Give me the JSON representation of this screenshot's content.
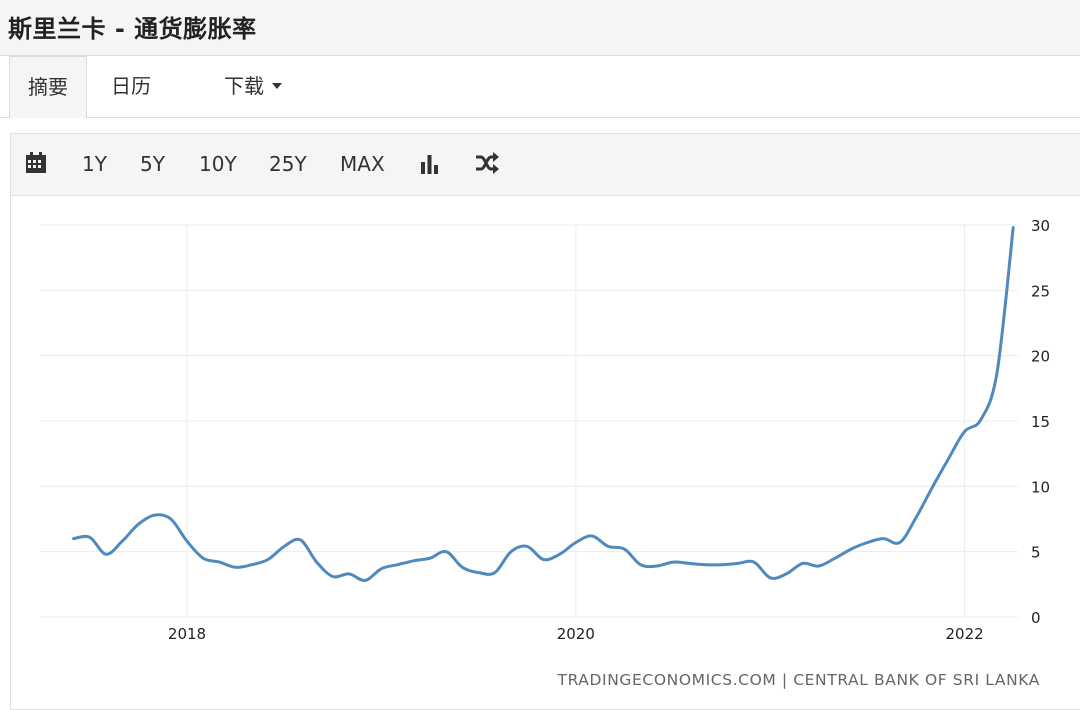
{
  "page": {
    "title": "斯里兰卡 - 通货膨胀率"
  },
  "tabs": [
    {
      "label": "摘要",
      "active": true
    },
    {
      "label": "日历",
      "active": false
    },
    {
      "label": "下载",
      "active": false,
      "dropdown": true
    }
  ],
  "toolbar": {
    "calendar_icon": "calendar-icon",
    "ranges": [
      "1Y",
      "5Y",
      "10Y",
      "25Y",
      "MAX"
    ],
    "chart_type_icon": "bar-chart-icon",
    "compare_icon": "shuffle-icon"
  },
  "source": "TRADINGECONOMICS.COM  |  CENTRAL BANK OF SRI LANKA",
  "chart_data": {
    "type": "line",
    "title": "",
    "xlabel": "",
    "ylabel": "",
    "line_color": "#4f89bd",
    "ylim": [
      0,
      30
    ],
    "y_ticks": [
      0,
      5,
      10,
      15,
      20,
      25,
      30
    ],
    "y_axis_position": "right",
    "x_tick_labels": [
      "2018",
      "2020",
      "2022"
    ],
    "grid": true,
    "series": [
      {
        "values": [
          [
            "2017-06",
            6.0
          ],
          [
            "2017-07",
            6.1
          ],
          [
            "2017-08",
            4.8
          ],
          [
            "2017-09",
            5.8
          ],
          [
            "2017-10",
            7.1
          ],
          [
            "2017-11",
            7.8
          ],
          [
            "2017-12",
            7.5
          ],
          [
            "2018-01",
            5.8
          ],
          [
            "2018-02",
            4.5
          ],
          [
            "2018-03",
            4.2
          ],
          [
            "2018-04",
            3.8
          ],
          [
            "2018-05",
            4.0
          ],
          [
            "2018-06",
            4.4
          ],
          [
            "2018-07",
            5.4
          ],
          [
            "2018-08",
            5.9
          ],
          [
            "2018-09",
            4.2
          ],
          [
            "2018-10",
            3.1
          ],
          [
            "2018-11",
            3.3
          ],
          [
            "2018-12",
            2.8
          ],
          [
            "2019-01",
            3.7
          ],
          [
            "2019-02",
            4.0
          ],
          [
            "2019-03",
            4.3
          ],
          [
            "2019-04",
            4.5
          ],
          [
            "2019-05",
            5.0
          ],
          [
            "2019-06",
            3.8
          ],
          [
            "2019-07",
            3.4
          ],
          [
            "2019-08",
            3.4
          ],
          [
            "2019-09",
            5.0
          ],
          [
            "2019-10",
            5.4
          ],
          [
            "2019-11",
            4.4
          ],
          [
            "2019-12",
            4.8
          ],
          [
            "2020-01",
            5.7
          ],
          [
            "2020-02",
            6.2
          ],
          [
            "2020-03",
            5.4
          ],
          [
            "2020-04",
            5.2
          ],
          [
            "2020-05",
            4.0
          ],
          [
            "2020-06",
            3.9
          ],
          [
            "2020-07",
            4.2
          ],
          [
            "2020-08",
            4.1
          ],
          [
            "2020-09",
            4.0
          ],
          [
            "2020-10",
            4.0
          ],
          [
            "2020-11",
            4.1
          ],
          [
            "2020-12",
            4.2
          ],
          [
            "2021-01",
            3.0
          ],
          [
            "2021-02",
            3.3
          ],
          [
            "2021-03",
            4.1
          ],
          [
            "2021-04",
            3.9
          ],
          [
            "2021-05",
            4.5
          ],
          [
            "2021-06",
            5.2
          ],
          [
            "2021-07",
            5.7
          ],
          [
            "2021-08",
            6.0
          ],
          [
            "2021-09",
            5.7
          ],
          [
            "2021-10",
            7.6
          ],
          [
            "2021-11",
            9.9
          ],
          [
            "2021-12",
            12.1
          ],
          [
            "2022-01",
            14.2
          ],
          [
            "2022-02",
            15.1
          ],
          [
            "2022-03",
            18.7
          ],
          [
            "2022-04",
            29.8
          ]
        ]
      }
    ]
  }
}
